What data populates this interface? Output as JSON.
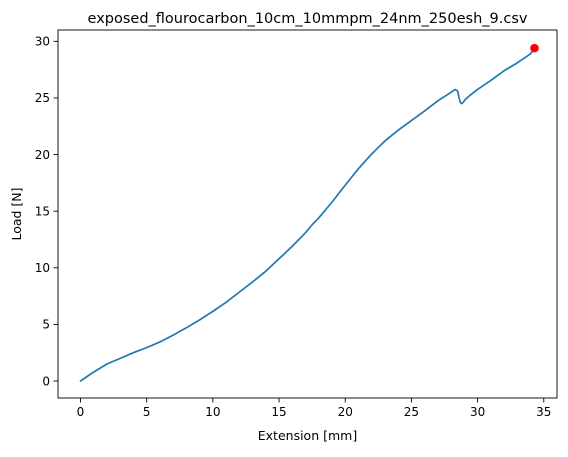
{
  "chart_data": {
    "type": "line",
    "title": "exposed_flourocarbon_10cm_10mmpm_24nm_250esh_9.csv",
    "xlabel": "Extension [mm]",
    "ylabel": "Load [N]",
    "xlim": [
      -1.7,
      36.0
    ],
    "ylim": [
      -1.5,
      31.0
    ],
    "xticks": [
      0,
      5,
      10,
      15,
      20,
      25,
      30,
      35
    ],
    "yticks": [
      0,
      5,
      10,
      15,
      20,
      25,
      30
    ],
    "grid": false,
    "series": [
      {
        "color": "#1f77b4",
        "x": [
          0,
          0.5,
          1,
          2,
          3,
          4,
          5,
          6,
          7,
          8,
          9,
          10,
          11,
          12,
          13,
          14,
          15,
          16,
          17,
          17.5,
          18,
          19,
          20,
          21,
          22,
          23,
          24,
          25,
          26,
          27,
          28,
          28.3,
          28.5,
          28.6,
          28.7,
          28.8,
          28.9,
          29.1,
          29.5,
          30,
          31,
          32,
          33,
          34,
          34.3
        ],
        "y": [
          0,
          0.4,
          0.8,
          1.5,
          2.0,
          2.5,
          2.95,
          3.45,
          4.05,
          4.7,
          5.4,
          6.15,
          6.95,
          7.85,
          8.75,
          9.7,
          10.8,
          11.9,
          13.1,
          13.8,
          14.4,
          15.8,
          17.3,
          18.75,
          20.05,
          21.2,
          22.15,
          23.0,
          23.85,
          24.75,
          25.5,
          25.75,
          25.6,
          25.0,
          24.6,
          24.5,
          24.6,
          24.9,
          25.3,
          25.75,
          26.55,
          27.4,
          28.1,
          28.9,
          29.4
        ]
      }
    ],
    "markers": [
      {
        "x": 34.3,
        "y": 29.4,
        "color": "#ff0000"
      }
    ]
  }
}
